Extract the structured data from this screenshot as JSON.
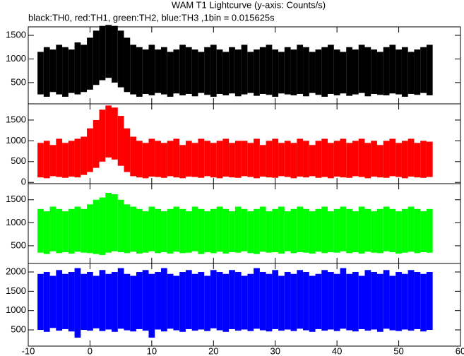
{
  "title": "WAM T1 Lightcurve (y-axis: Counts/s)",
  "subtitle": "black:TH0, red:TH1, green:TH2, blue:TH3 ,1bin = 0.015625s",
  "chart_data": [
    {
      "type": "range",
      "x": [
        -8,
        -7,
        -6,
        -5,
        -4,
        -3,
        -2,
        -1,
        0,
        1,
        2,
        3,
        4,
        5,
        6,
        7,
        8,
        9,
        10,
        11,
        12,
        13,
        14,
        15,
        16,
        17,
        18,
        19,
        20,
        21,
        22,
        23,
        24,
        25,
        26,
        27,
        28,
        29,
        30,
        31,
        32,
        33,
        34,
        35,
        36,
        37,
        38,
        39,
        40,
        41,
        42,
        43,
        44,
        45,
        46,
        47,
        48,
        49,
        50,
        51,
        52,
        53,
        54,
        55
      ],
      "series": [
        {
          "color": "#000000",
          "low": [
            250,
            200,
            300,
            250,
            200,
            280,
            250,
            300,
            350,
            450,
            550,
            600,
            500,
            400,
            300,
            250,
            200,
            260,
            230,
            280,
            250,
            200,
            270,
            230,
            260,
            210,
            280,
            240,
            200,
            260,
            230,
            270,
            210,
            250,
            280,
            220,
            260,
            240,
            200,
            270,
            250,
            230,
            260,
            210,
            280,
            240,
            200,
            260,
            230,
            270,
            220,
            250,
            280,
            210,
            260,
            240,
            230,
            270,
            250,
            200,
            260,
            240,
            280,
            230
          ],
          "high": [
            1150,
            1250,
            1200,
            1300,
            1250,
            1200,
            1350,
            1300,
            1450,
            1600,
            1700,
            1720,
            1700,
            1600,
            1450,
            1300,
            1250,
            1200,
            1300,
            1200,
            1250,
            1150,
            1200,
            1300,
            1250,
            1200,
            1150,
            1250,
            1300,
            1200,
            1150,
            1250,
            1200,
            1300,
            1150,
            1200,
            1250,
            1300,
            1200,
            1150,
            1250,
            1200,
            1300,
            1250,
            1150,
            1200,
            1250,
            1300,
            1200,
            1150,
            1250,
            1200,
            1300,
            1250,
            1200,
            1150,
            1250,
            1300,
            1200,
            1250,
            1150,
            1200,
            1250,
            1300
          ]
        }
      ],
      "xlim": [
        -10,
        60
      ],
      "ylim": [
        50,
        1680
      ],
      "yticks": [
        500,
        1000,
        1500
      ]
    },
    {
      "type": "range",
      "x": [
        -8,
        -7,
        -6,
        -5,
        -4,
        -3,
        -2,
        -1,
        0,
        1,
        2,
        3,
        4,
        5,
        6,
        7,
        8,
        9,
        10,
        11,
        12,
        13,
        14,
        15,
        16,
        17,
        18,
        19,
        20,
        21,
        22,
        23,
        24,
        25,
        26,
        27,
        28,
        29,
        30,
        31,
        32,
        33,
        34,
        35,
        36,
        37,
        38,
        39,
        40,
        41,
        42,
        43,
        44,
        45,
        46,
        47,
        48,
        49,
        50,
        51,
        52,
        53,
        54,
        55
      ],
      "series": [
        {
          "color": "#ff0000",
          "low": [
            120,
            100,
            150,
            130,
            110,
            140,
            120,
            180,
            250,
            350,
            500,
            600,
            550,
            400,
            250,
            150,
            120,
            100,
            140,
            130,
            110,
            150,
            120,
            100,
            140,
            130,
            110,
            150,
            120,
            100,
            140,
            120,
            110,
            150,
            130,
            100,
            140,
            120,
            110,
            150,
            130,
            100,
            140,
            120,
            150,
            110,
            130,
            100,
            140,
            120,
            110,
            150,
            130,
            100,
            140,
            120,
            110,
            150,
            130,
            100,
            140,
            120,
            110,
            130
          ],
          "high": [
            950,
            1000,
            900,
            1050,
            950,
            1000,
            1050,
            1100,
            1300,
            1500,
            1750,
            1850,
            1800,
            1600,
            1300,
            1100,
            1000,
            950,
            1050,
            1000,
            950,
            1000,
            1050,
            900,
            1000,
            950,
            1050,
            1000,
            950,
            1000,
            1050,
            950,
            1000,
            1000,
            950,
            1050,
            900,
            1000,
            1050,
            950,
            1000,
            950,
            1050,
            1000,
            900,
            1000,
            1050,
            950,
            1000,
            1050,
            950,
            1000,
            1050,
            950,
            1000,
            900,
            1000,
            1050,
            950,
            1000,
            1050,
            950,
            1000,
            980
          ]
        }
      ],
      "xlim": [
        -10,
        60
      ],
      "ylim": [
        -30,
        1890
      ],
      "yticks": [
        0,
        500,
        1000,
        1500
      ]
    },
    {
      "type": "range",
      "x": [
        -8,
        -7,
        -6,
        -5,
        -4,
        -3,
        -2,
        -1,
        0,
        1,
        2,
        3,
        4,
        5,
        6,
        7,
        8,
        9,
        10,
        11,
        12,
        13,
        14,
        15,
        16,
        17,
        18,
        19,
        20,
        21,
        22,
        23,
        24,
        25,
        26,
        27,
        28,
        29,
        30,
        31,
        32,
        33,
        34,
        35,
        36,
        37,
        38,
        39,
        40,
        41,
        42,
        43,
        44,
        45,
        46,
        47,
        48,
        49,
        50,
        51,
        52,
        53,
        54,
        55
      ],
      "series": [
        {
          "color": "#00ff00",
          "low": [
            350,
            320,
            380,
            340,
            360,
            330,
            370,
            350,
            340,
            320,
            300,
            350,
            380,
            360,
            340,
            370,
            330,
            350,
            380,
            340,
            360,
            330,
            370,
            340,
            350,
            380,
            320,
            360,
            340,
            370,
            330,
            360,
            350,
            380,
            340,
            320,
            370,
            350,
            360,
            330,
            380,
            340,
            360,
            350,
            330,
            370,
            340,
            360,
            350,
            380,
            340,
            360,
            330,
            370,
            350,
            340,
            380,
            360,
            330,
            350,
            370,
            340,
            360,
            350
          ],
          "high": [
            1300,
            1250,
            1350,
            1300,
            1250,
            1300,
            1350,
            1300,
            1400,
            1500,
            1550,
            1650,
            1620,
            1500,
            1400,
            1350,
            1300,
            1250,
            1350,
            1300,
            1250,
            1300,
            1350,
            1300,
            1250,
            1350,
            1300,
            1250,
            1300,
            1350,
            1300,
            1250,
            1350,
            1300,
            1250,
            1300,
            1350,
            1250,
            1300,
            1350,
            1250,
            1300,
            1350,
            1300,
            1250,
            1300,
            1350,
            1250,
            1300,
            1350,
            1300,
            1250,
            1350,
            1300,
            1250,
            1300,
            1350,
            1300,
            1250,
            1300,
            1350,
            1300,
            1250,
            1300
          ]
        }
      ],
      "xlim": [
        -10,
        60
      ],
      "ylim": [
        115,
        1850
      ],
      "yticks": [
        500,
        1000,
        1500
      ]
    },
    {
      "type": "range",
      "x": [
        -8,
        -7,
        -6,
        -5,
        -4,
        -3,
        -2,
        -1,
        0,
        1,
        2,
        3,
        4,
        5,
        6,
        7,
        8,
        9,
        10,
        11,
        12,
        13,
        14,
        15,
        16,
        17,
        18,
        19,
        20,
        21,
        22,
        23,
        24,
        25,
        26,
        27,
        28,
        29,
        30,
        31,
        32,
        33,
        34,
        35,
        36,
        37,
        38,
        39,
        40,
        41,
        42,
        43,
        44,
        45,
        46,
        47,
        48,
        49,
        50,
        51,
        52,
        53,
        54,
        55
      ],
      "series": [
        {
          "color": "#0000ff",
          "low": [
            500,
            450,
            550,
            480,
            520,
            460,
            300,
            500,
            480,
            540,
            470,
            510,
            450,
            530,
            490,
            460,
            520,
            480,
            300,
            510,
            460,
            530,
            490,
            450,
            520,
            480,
            510,
            470,
            540,
            490,
            450,
            520,
            480,
            510,
            470,
            530,
            490,
            460,
            520,
            480,
            510,
            470,
            530,
            490,
            450,
            520,
            480,
            510,
            470,
            530,
            490,
            460,
            520,
            480,
            510,
            450,
            530,
            490,
            470,
            510,
            480,
            520,
            460,
            500
          ],
          "high": [
            1950,
            2000,
            1900,
            2050,
            1950,
            2000,
            2100,
            1950,
            2000,
            1900,
            2050,
            1950,
            2000,
            2100,
            1950,
            1900,
            2000,
            2050,
            1950,
            2000,
            2100,
            1950,
            1900,
            2000,
            2050,
            1950,
            2000,
            1900,
            2050,
            2000,
            1950,
            2050,
            2000,
            1900,
            1950,
            2100,
            2000,
            1950,
            2050,
            1900,
            2000,
            1950,
            2050,
            2000,
            1900,
            1950,
            2050,
            2000,
            1950,
            2100,
            1950,
            2000,
            1900,
            2050,
            2000,
            1950,
            2050,
            1900,
            2000,
            1950,
            2050,
            2000,
            1950,
            2000
          ]
        }
      ],
      "xlim": [
        -10,
        60
      ],
      "ylim": [
        80,
        2220
      ],
      "yticks": [
        500,
        1000,
        1500,
        2000
      ],
      "xticks": [
        -10,
        0,
        10,
        20,
        30,
        40,
        50,
        60
      ]
    }
  ]
}
